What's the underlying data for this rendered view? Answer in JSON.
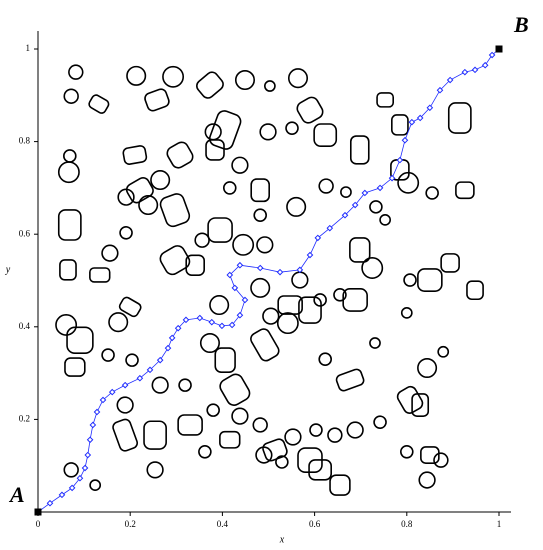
{
  "chart_data": {
    "type": "scatter",
    "xlabel": "x",
    "ylabel": "y",
    "annotations": [
      "A",
      "B"
    ],
    "xlim": [
      0,
      1
    ],
    "ylim": [
      0,
      1
    ],
    "xticks": [
      0,
      0.2,
      0.4,
      0.6,
      0.8,
      1
    ],
    "yticks": [
      0.2,
      0.4,
      0.6,
      0.8,
      1
    ],
    "obstacle_color": "#000000",
    "path": {
      "color": "#1f2cff",
      "x": [
        0,
        0.026,
        0.052,
        0.074,
        0.091,
        0.102,
        0.108,
        0.113,
        0.119,
        0.128,
        0.141,
        0.161,
        0.189,
        0.221,
        0.243,
        0.265,
        0.282,
        0.291,
        0.304,
        0.321,
        0.351,
        0.377,
        0.399,
        0.421,
        0.438,
        0.449,
        0.427,
        0.416,
        0.438,
        0.482,
        0.525,
        0.568,
        0.59,
        0.607,
        0.633,
        0.666,
        0.688,
        0.709,
        0.742,
        0.768,
        0.785,
        0.796,
        0.811,
        0.829,
        0.85,
        0.872,
        0.894,
        0.926,
        0.948,
        0.97,
        0.985,
        1
      ],
      "y": [
        0,
        0.019,
        0.037,
        0.052,
        0.073,
        0.095,
        0.123,
        0.156,
        0.188,
        0.216,
        0.242,
        0.259,
        0.274,
        0.289,
        0.307,
        0.328,
        0.354,
        0.376,
        0.397,
        0.415,
        0.419,
        0.41,
        0.402,
        0.404,
        0.425,
        0.458,
        0.484,
        0.512,
        0.533,
        0.527,
        0.518,
        0.523,
        0.555,
        0.592,
        0.613,
        0.641,
        0.663,
        0.689,
        0.7,
        0.721,
        0.76,
        0.803,
        0.842,
        0.851,
        0.873,
        0.911,
        0.933,
        0.95,
        0.955,
        0.965,
        0.987,
        1
      ]
    },
    "endpoints": {
      "color": "#000000",
      "x": [
        0,
        1
      ],
      "y": [
        0,
        1
      ]
    },
    "circles": [
      [
        0.082,
        0.95,
        0.015
      ],
      [
        0.072,
        0.898,
        0.015
      ],
      [
        0.213,
        0.942,
        0.02
      ],
      [
        0.293,
        0.94,
        0.022
      ],
      [
        0.449,
        0.933,
        0.02
      ],
      [
        0.503,
        0.92,
        0.011
      ],
      [
        0.564,
        0.937,
        0.02
      ],
      [
        0.38,
        0.821,
        0.017
      ],
      [
        0.499,
        0.821,
        0.017
      ],
      [
        0.551,
        0.829,
        0.013
      ],
      [
        0.438,
        0.749,
        0.017
      ],
      [
        0.067,
        0.734,
        0.022
      ],
      [
        0.069,
        0.769,
        0.013
      ],
      [
        0.265,
        0.717,
        0.02
      ],
      [
        0.191,
        0.68,
        0.017
      ],
      [
        0.156,
        0.559,
        0.017
      ],
      [
        0.191,
        0.603,
        0.013
      ],
      [
        0.239,
        0.663,
        0.02
      ],
      [
        0.356,
        0.587,
        0.015
      ],
      [
        0.416,
        0.7,
        0.013
      ],
      [
        0.482,
        0.641,
        0.013
      ],
      [
        0.56,
        0.659,
        0.02
      ],
      [
        0.625,
        0.704,
        0.015
      ],
      [
        0.668,
        0.691,
        0.011
      ],
      [
        0.733,
        0.659,
        0.013
      ],
      [
        0.753,
        0.631,
        0.011
      ],
      [
        0.803,
        0.711,
        0.022
      ],
      [
        0.855,
        0.689,
        0.013
      ],
      [
        0.725,
        0.527,
        0.022
      ],
      [
        0.807,
        0.501,
        0.013
      ],
      [
        0.061,
        0.404,
        0.022
      ],
      [
        0.152,
        0.339,
        0.013
      ],
      [
        0.204,
        0.328,
        0.013
      ],
      [
        0.174,
        0.41,
        0.02
      ],
      [
        0.393,
        0.447,
        0.02
      ],
      [
        0.373,
        0.365,
        0.02
      ],
      [
        0.505,
        0.423,
        0.017
      ],
      [
        0.542,
        0.408,
        0.022
      ],
      [
        0.623,
        0.33,
        0.013
      ],
      [
        0.731,
        0.365,
        0.011
      ],
      [
        0.844,
        0.311,
        0.02
      ],
      [
        0.879,
        0.346,
        0.011
      ],
      [
        0.8,
        0.43,
        0.011
      ],
      [
        0.265,
        0.274,
        0.017
      ],
      [
        0.319,
        0.274,
        0.013
      ],
      [
        0.189,
        0.231,
        0.017
      ],
      [
        0.38,
        0.22,
        0.013
      ],
      [
        0.438,
        0.207,
        0.017
      ],
      [
        0.553,
        0.162,
        0.017
      ],
      [
        0.644,
        0.166,
        0.015
      ],
      [
        0.742,
        0.194,
        0.013
      ],
      [
        0.8,
        0.13,
        0.013
      ],
      [
        0.844,
        0.069,
        0.017
      ],
      [
        0.874,
        0.112,
        0.015
      ],
      [
        0.254,
        0.091,
        0.017
      ],
      [
        0.362,
        0.13,
        0.013
      ],
      [
        0.49,
        0.123,
        0.017
      ],
      [
        0.529,
        0.108,
        0.013
      ],
      [
        0.072,
        0.091,
        0.015
      ],
      [
        0.124,
        0.058,
        0.011
      ],
      [
        0.482,
        0.188,
        0.015
      ],
      [
        0.603,
        0.177,
        0.013
      ],
      [
        0.688,
        0.177,
        0.017
      ],
      [
        0.445,
        0.577,
        0.022
      ],
      [
        0.492,
        0.577,
        0.017
      ],
      [
        0.568,
        0.501,
        0.017
      ],
      [
        0.612,
        0.458,
        0.013
      ],
      [
        0.655,
        0.469,
        0.013
      ],
      [
        0.482,
        0.484,
        0.02
      ]
    ],
    "rects": [
      [
        0.132,
        0.881,
        0.039,
        0.03,
        -30
      ],
      [
        0.258,
        0.89,
        0.048,
        0.039,
        20
      ],
      [
        0.373,
        0.922,
        0.052,
        0.043,
        40
      ],
      [
        0.406,
        0.825,
        0.052,
        0.078,
        -20
      ],
      [
        0.21,
        0.771,
        0.048,
        0.035,
        10
      ],
      [
        0.308,
        0.771,
        0.048,
        0.048,
        30
      ],
      [
        0.384,
        0.782,
        0.039,
        0.043,
        0
      ],
      [
        0.59,
        0.868,
        0.048,
        0.048,
        30
      ],
      [
        0.623,
        0.814,
        0.048,
        0.048,
        0
      ],
      [
        0.698,
        0.782,
        0.039,
        0.06,
        0
      ],
      [
        0.753,
        0.89,
        0.035,
        0.03,
        0
      ],
      [
        0.785,
        0.836,
        0.035,
        0.043,
        0
      ],
      [
        0.915,
        0.851,
        0.048,
        0.065,
        0
      ],
      [
        0.926,
        0.695,
        0.039,
        0.035,
        0
      ],
      [
        0.069,
        0.62,
        0.048,
        0.065,
        0
      ],
      [
        0.065,
        0.523,
        0.035,
        0.043,
        0
      ],
      [
        0.134,
        0.512,
        0.043,
        0.03,
        0
      ],
      [
        0.2,
        0.443,
        0.043,
        0.03,
        -30
      ],
      [
        0.297,
        0.544,
        0.056,
        0.052,
        30
      ],
      [
        0.341,
        0.533,
        0.039,
        0.043,
        0
      ],
      [
        0.395,
        0.609,
        0.052,
        0.052,
        0
      ],
      [
        0.482,
        0.695,
        0.039,
        0.048,
        0
      ],
      [
        0.406,
        0.328,
        0.043,
        0.052,
        0
      ],
      [
        0.492,
        0.361,
        0.043,
        0.065,
        30
      ],
      [
        0.547,
        0.447,
        0.052,
        0.039,
        0
      ],
      [
        0.59,
        0.436,
        0.048,
        0.056,
        0
      ],
      [
        0.688,
        0.458,
        0.052,
        0.048,
        0
      ],
      [
        0.677,
        0.285,
        0.056,
        0.035,
        20
      ],
      [
        0.85,
        0.501,
        0.052,
        0.048,
        0
      ],
      [
        0.894,
        0.538,
        0.039,
        0.039,
        0
      ],
      [
        0.807,
        0.242,
        0.043,
        0.052,
        30
      ],
      [
        0.829,
        0.231,
        0.035,
        0.048,
        0
      ],
      [
        0.091,
        0.371,
        0.056,
        0.056,
        0
      ],
      [
        0.08,
        0.313,
        0.043,
        0.039,
        0
      ],
      [
        0.189,
        0.166,
        0.039,
        0.065,
        20
      ],
      [
        0.254,
        0.166,
        0.048,
        0.06,
        0
      ],
      [
        0.33,
        0.188,
        0.052,
        0.043,
        0
      ],
      [
        0.427,
        0.264,
        0.052,
        0.06,
        30
      ],
      [
        0.416,
        0.156,
        0.043,
        0.035,
        0
      ],
      [
        0.514,
        0.134,
        0.048,
        0.039,
        20
      ],
      [
        0.59,
        0.112,
        0.052,
        0.052,
        0
      ],
      [
        0.655,
        0.058,
        0.043,
        0.043,
        0
      ],
      [
        0.612,
        0.091,
        0.048,
        0.043,
        0
      ],
      [
        0.85,
        0.123,
        0.039,
        0.035,
        0
      ],
      [
        0.948,
        0.479,
        0.035,
        0.039,
        0
      ],
      [
        0.785,
        0.739,
        0.039,
        0.043,
        0
      ],
      [
        0.698,
        0.566,
        0.043,
        0.052,
        0
      ],
      [
        0.297,
        0.652,
        0.052,
        0.065,
        20
      ],
      [
        0.221,
        0.695,
        0.052,
        0.043,
        30
      ]
    ]
  }
}
